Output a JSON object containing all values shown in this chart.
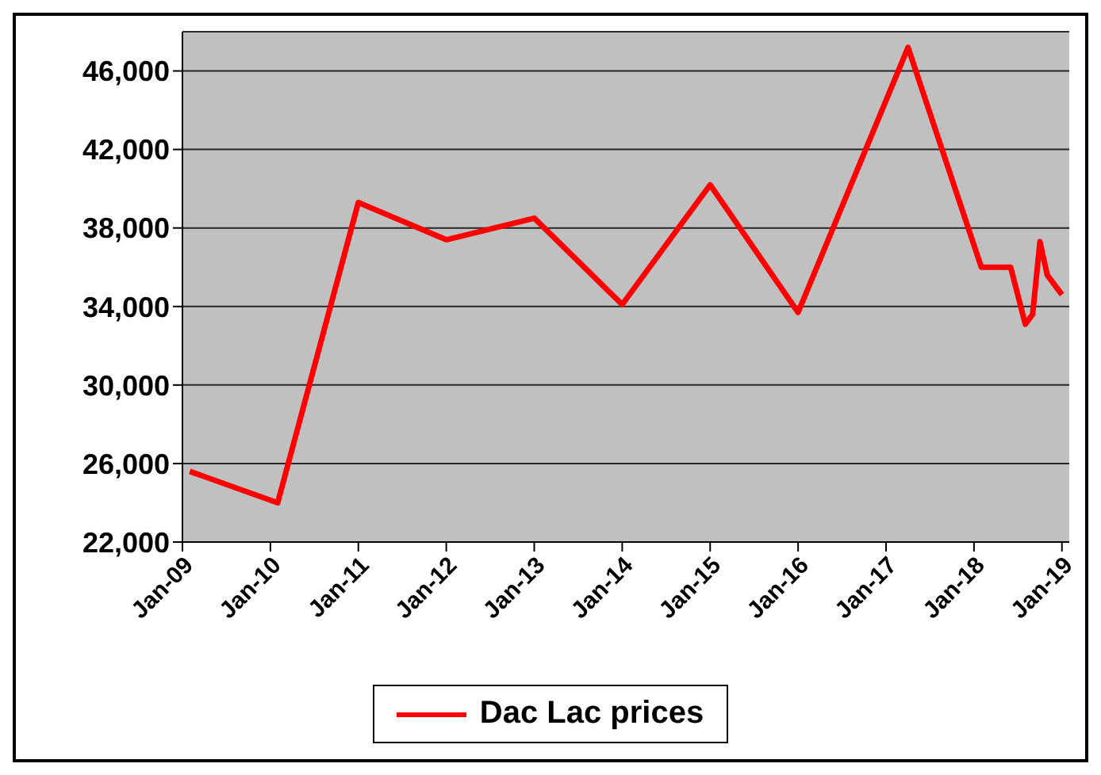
{
  "chart_data": {
    "type": "line",
    "x": [
      "2009-02",
      "2010-02",
      "2011-01",
      "2012-01",
      "2013-01",
      "2014-01",
      "2015-01",
      "2016-01",
      "2017-04",
      "2018-02",
      "2018-06",
      "2018-08",
      "2018-09",
      "2018-10",
      "2018-11",
      "2019-01"
    ],
    "series": [
      {
        "name": "Dac Lac prices",
        "color": "#ff0000",
        "values": [
          25600,
          24000,
          39300,
          37400,
          38500,
          34100,
          40200,
          33700,
          47200,
          36000,
          36000,
          33100,
          33600,
          37300,
          35600,
          34600
        ]
      }
    ],
    "xlim": [
      "2009-01",
      "2019-02"
    ],
    "xticks": [
      {
        "value": "2009-01",
        "label": "Jan-09"
      },
      {
        "value": "2010-01",
        "label": "Jan-10"
      },
      {
        "value": "2011-01",
        "label": "Jan-11"
      },
      {
        "value": "2012-01",
        "label": "Jan-12"
      },
      {
        "value": "2013-01",
        "label": "Jan-13"
      },
      {
        "value": "2014-01",
        "label": "Jan-14"
      },
      {
        "value": "2015-01",
        "label": "Jan-15"
      },
      {
        "value": "2016-01",
        "label": "Jan-16"
      },
      {
        "value": "2017-01",
        "label": "Jan-17"
      },
      {
        "value": "2018-01",
        "label": "Jan-18"
      },
      {
        "value": "2019-01",
        "label": "Jan-19"
      }
    ],
    "ylim": [
      22000,
      48000
    ],
    "yticks": [
      {
        "value": 22000,
        "label": "22,000"
      },
      {
        "value": 26000,
        "label": "26,000"
      },
      {
        "value": 30000,
        "label": "30,000"
      },
      {
        "value": 34000,
        "label": "34,000"
      },
      {
        "value": 38000,
        "label": "38,000"
      },
      {
        "value": 42000,
        "label": "42,000"
      },
      {
        "value": 46000,
        "label": "46,000"
      }
    ],
    "grid": "y",
    "legend": "bottom",
    "marker": "none",
    "line_style": "solid"
  }
}
